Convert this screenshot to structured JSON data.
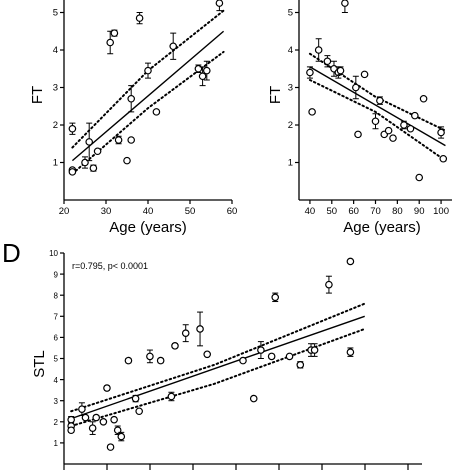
{
  "chart_data": [
    {
      "type": "scatter",
      "xlabel": "Age (years)",
      "ylabel": "FT",
      "xlim": [
        20,
        60
      ],
      "ylim": [
        0,
        5.6
      ],
      "xticks": [
        20,
        30,
        40,
        50,
        60
      ],
      "yticks": [
        1,
        2,
        3,
        4,
        5
      ],
      "points": [
        {
          "x": 22,
          "y": 1.9,
          "err": 0.15
        },
        {
          "x": 22,
          "y": 0.8,
          "err": 0.05
        },
        {
          "x": 22,
          "y": 0.75,
          "err": 0.05
        },
        {
          "x": 25,
          "y": 1.0,
          "err": 0.15
        },
        {
          "x": 26,
          "y": 1.55,
          "err": 0.5
        },
        {
          "x": 27,
          "y": 0.85,
          "err": 0.08
        },
        {
          "x": 28,
          "y": 1.3,
          "err": 0.05
        },
        {
          "x": 31,
          "y": 4.2,
          "err": 0.3
        },
        {
          "x": 32,
          "y": 4.45,
          "err": 0.08
        },
        {
          "x": 33,
          "y": 1.6,
          "err": 0.1
        },
        {
          "x": 35,
          "y": 1.05,
          "err": 0.05
        },
        {
          "x": 36,
          "y": 2.7,
          "err": 0.35
        },
        {
          "x": 36,
          "y": 1.6,
          "err": 0.05
        },
        {
          "x": 38,
          "y": 4.85,
          "err": 0.15
        },
        {
          "x": 40,
          "y": 3.45,
          "err": 0.2
        },
        {
          "x": 42,
          "y": 2.35,
          "err": 0.05
        },
        {
          "x": 46,
          "y": 4.1,
          "err": 0.35
        },
        {
          "x": 52,
          "y": 3.5,
          "err": 0.1
        },
        {
          "x": 53,
          "y": 3.3,
          "err": 0.25
        },
        {
          "x": 54,
          "y": 3.45,
          "err": 0.25
        },
        {
          "x": 57,
          "y": 5.25,
          "err": 0.2
        }
      ],
      "fit": {
        "x": [
          22,
          58
        ],
        "y": [
          1.05,
          4.5
        ]
      },
      "ci_upper": {
        "x": [
          22,
          40,
          58
        ],
        "y": [
          1.4,
          3.45,
          5.05
        ]
      },
      "ci_lower": {
        "x": [
          22,
          40,
          58
        ],
        "y": [
          0.7,
          2.45,
          3.95
        ]
      }
    },
    {
      "type": "scatter",
      "xlabel": "Age (years)",
      "ylabel": "FT",
      "xlim": [
        35,
        105
      ],
      "ylim": [
        0,
        5.6
      ],
      "xticks": [
        40,
        50,
        60,
        70,
        80,
        90,
        100
      ],
      "yticks": [
        1,
        2,
        3,
        4,
        5
      ],
      "points": [
        {
          "x": 40,
          "y": 3.4,
          "err": 0.15
        },
        {
          "x": 41,
          "y": 2.35,
          "err": 0.05
        },
        {
          "x": 44,
          "y": 4.0,
          "err": 0.3
        },
        {
          "x": 48,
          "y": 3.7,
          "err": 0.15
        },
        {
          "x": 51,
          "y": 3.5,
          "err": 0.2
        },
        {
          "x": 53,
          "y": 3.4,
          "err": 0.15
        },
        {
          "x": 54,
          "y": 3.45,
          "err": 0.1
        },
        {
          "x": 56,
          "y": 5.25,
          "err": 0.25
        },
        {
          "x": 61,
          "y": 3.0,
          "err": 0.3
        },
        {
          "x": 62,
          "y": 1.75,
          "err": 0.05
        },
        {
          "x": 65,
          "y": 3.35,
          "err": 0.05
        },
        {
          "x": 70,
          "y": 2.1,
          "err": 0.2
        },
        {
          "x": 72,
          "y": 2.65,
          "err": 0.1
        },
        {
          "x": 74,
          "y": 1.75,
          "err": 0.05
        },
        {
          "x": 76,
          "y": 1.85,
          "err": 0.05
        },
        {
          "x": 78,
          "y": 1.65,
          "err": 0.05
        },
        {
          "x": 83,
          "y": 2.0,
          "err": 0.1
        },
        {
          "x": 86,
          "y": 1.9,
          "err": 0.05
        },
        {
          "x": 88,
          "y": 2.25,
          "err": 0.05
        },
        {
          "x": 90,
          "y": 0.6,
          "err": 0.05
        },
        {
          "x": 92,
          "y": 2.7,
          "err": 0.05
        },
        {
          "x": 100,
          "y": 1.8,
          "err": 0.15
        },
        {
          "x": 101,
          "y": 1.1,
          "err": 0.05
        }
      ],
      "fit": {
        "x": [
          40,
          102
        ],
        "y": [
          3.55,
          1.45
        ]
      },
      "ci_upper": {
        "x": [
          40,
          70,
          102
        ],
        "y": [
          3.9,
          2.75,
          1.85
        ]
      },
      "ci_lower": {
        "x": [
          40,
          70,
          102
        ],
        "y": [
          3.2,
          2.35,
          1.05
        ]
      }
    },
    {
      "type": "scatter",
      "panel_label": "D",
      "annotation": "r=0.795, p< 0.0001",
      "ylabel": "STL",
      "ylim": [
        0,
        10
      ],
      "yticks": [
        1,
        2,
        3,
        4,
        5,
        6,
        7,
        8,
        9,
        10
      ],
      "xlim": [
        0,
        100
      ],
      "points": [
        {
          "x": 2,
          "y": 2.1,
          "err": 0.15
        },
        {
          "x": 2,
          "y": 1.8,
          "err": 0.1
        },
        {
          "x": 2,
          "y": 1.6,
          "err": 0.1
        },
        {
          "x": 5,
          "y": 2.6,
          "err": 0.3
        },
        {
          "x": 6,
          "y": 2.2,
          "err": 0.05
        },
        {
          "x": 8,
          "y": 1.7,
          "err": 0.3
        },
        {
          "x": 9,
          "y": 2.2,
          "err": 0.1
        },
        {
          "x": 11,
          "y": 2.0,
          "err": 0.05
        },
        {
          "x": 12,
          "y": 3.6,
          "err": 0.1
        },
        {
          "x": 13,
          "y": 0.8,
          "err": 0.05
        },
        {
          "x": 14,
          "y": 2.1,
          "err": 0.05
        },
        {
          "x": 15,
          "y": 1.6,
          "err": 0.2
        },
        {
          "x": 16,
          "y": 1.3,
          "err": 0.2
        },
        {
          "x": 18,
          "y": 4.9,
          "err": 0.1
        },
        {
          "x": 20,
          "y": 3.1,
          "err": 0.15
        },
        {
          "x": 21,
          "y": 2.5,
          "err": 0.05
        },
        {
          "x": 24,
          "y": 5.1,
          "err": 0.3
        },
        {
          "x": 27,
          "y": 4.9,
          "err": 0.1
        },
        {
          "x": 30,
          "y": 3.2,
          "err": 0.2
        },
        {
          "x": 31,
          "y": 5.6,
          "err": 0.1
        },
        {
          "x": 34,
          "y": 6.2,
          "err": 0.4
        },
        {
          "x": 38,
          "y": 6.4,
          "err": 0.8
        },
        {
          "x": 40,
          "y": 5.2,
          "err": 0.05
        },
        {
          "x": 50,
          "y": 4.9,
          "err": 0.05
        },
        {
          "x": 53,
          "y": 3.1,
          "err": 0.05
        },
        {
          "x": 55,
          "y": 5.4,
          "err": 0.4
        },
        {
          "x": 58,
          "y": 5.1,
          "err": 0.1
        },
        {
          "x": 59,
          "y": 7.9,
          "err": 0.2
        },
        {
          "x": 63,
          "y": 5.1,
          "err": 0.05
        },
        {
          "x": 66,
          "y": 4.7,
          "err": 0.15
        },
        {
          "x": 69,
          "y": 5.4,
          "err": 0.3
        },
        {
          "x": 70,
          "y": 5.4,
          "err": 0.3
        },
        {
          "x": 74,
          "y": 8.5,
          "err": 0.4
        },
        {
          "x": 80,
          "y": 5.3,
          "err": 0.2
        },
        {
          "x": 80,
          "y": 9.6,
          "err": 0.05
        }
      ],
      "fit": {
        "x": [
          2,
          84
        ],
        "y": [
          2.15,
          7.0
        ]
      },
      "ci_upper": {
        "x": [
          2,
          42,
          84
        ],
        "y": [
          2.5,
          4.7,
          7.6
        ]
      },
      "ci_lower": {
        "x": [
          2,
          42,
          84
        ],
        "y": [
          1.8,
          3.8,
          6.4
        ]
      }
    }
  ]
}
